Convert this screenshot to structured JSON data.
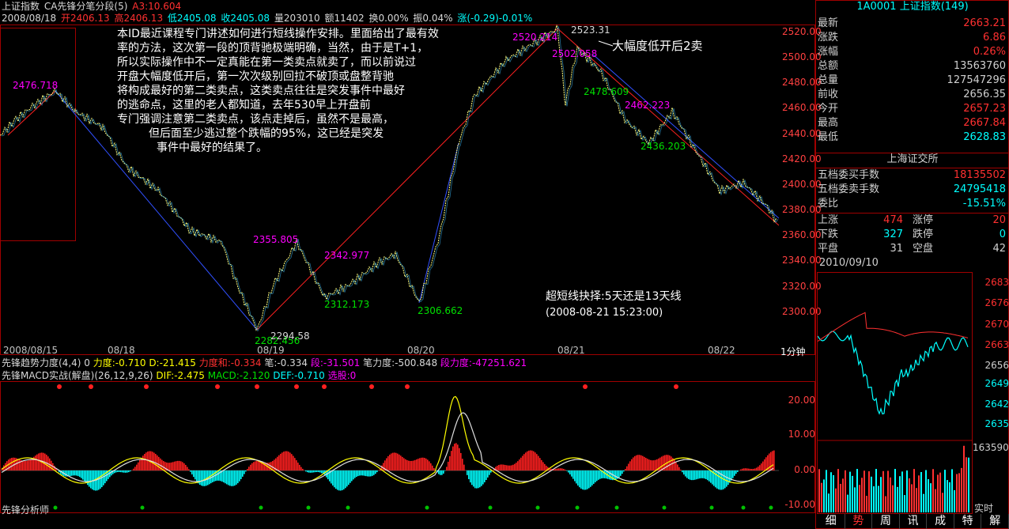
{
  "header": {
    "index_name": "上证指数",
    "indicator": "CA先锋分笔分段(5)",
    "a3": "A3:10.604",
    "date": "2008/08/18",
    "open": "开2406.13",
    "high": "高2406.13",
    "low": "低2405.08",
    "close": "收2405.08",
    "volume": "量203010",
    "amount": "额11402",
    "turnover": "换0.00%",
    "amplitude": "振0.04%",
    "change": "涨(-0.29)-0.01%"
  },
  "main_chart": {
    "y_ticks": [
      "2520.00",
      "2500.00",
      "2480.00",
      "2460.00",
      "2440.00",
      "2420.00",
      "2400.00",
      "2380.00",
      "2360.00",
      "2340.00",
      "2320.00",
      "2300.00"
    ],
    "x_labels": [
      "2008/08/15",
      "08/18",
      "08/19",
      "08/20",
      "08/21",
      "08/22"
    ],
    "period_button": "1分钟",
    "point_labels": [
      "2476.718",
      "2355.805",
      "2342.977",
      "2312.173",
      "2306.662",
      "2282.456",
      "2294.58",
      "2523.31",
      "2520.214",
      "2502.058",
      "2478.609",
      "2462.223",
      "2436.203"
    ],
    "annotation_right": "大幅度低开后2卖",
    "annotation_short": "超短线抉择:5天还是13天线",
    "annotation_time": "(2008-08-21  15:23:00)",
    "note_lines": [
      "本ID最近课程专门讲述如何进行短线操作安排。里面给出了最有效",
      "率的方法，这次第一段的顶背驰极端明确，当然，由于是T+1，",
      "所以实际操作中不一定真能在第一类卖点就卖了，而以前说过",
      "开盘大幅度低开后，第一次次级别回拉不破顶或盘整背驰",
      "将构成最好的第二类卖点，这类卖点往往是突发事件中最好",
      "的逃命点，这里的老人都知道，去年530早上开盘前",
      "专门强调注意第二类卖点，该点走掉后，虽然不是最高，",
      "但后面至少逃过整个跌幅的95%，这已经是突发",
      "事件中最好的结果了。"
    ]
  },
  "indicator1": {
    "name": "先锋趋势力度(4,4)",
    "zero": "0",
    "force": "力度:-0.710",
    "d": "D:-21.415",
    "force_sum": "力度和:-0.334",
    "stroke": "笔:-0.334",
    "segment": "段:-31.501",
    "stroke_force": "笔力度:-500.848",
    "segment_force": "段力度:-47251.621"
  },
  "indicator2": {
    "name": "先锋MACD实战(解盘)(26,12,9,26)",
    "dif": "DIF:-2.475",
    "macd": "MACD:-2.120",
    "def": "DEF:-0.710",
    "pick": "选股:0",
    "y_ticks": [
      "20.00",
      "10.00",
      "0.00",
      "-10.00"
    ],
    "footer": "先锋分析师"
  },
  "right_panel": {
    "title": "1A0001 上证指数(149)",
    "quotes": [
      {
        "k": "最新",
        "v": "2663.21",
        "c": "#ff3030"
      },
      {
        "k": "涨跌",
        "v": "6.86",
        "c": "#ff3030"
      },
      {
        "k": "涨幅",
        "v": "0.26%",
        "c": "#ff3030"
      },
      {
        "k": "总额",
        "v": "13563760",
        "c": "#d0d0d0"
      },
      {
        "k": "总量",
        "v": "127547296",
        "c": "#d0d0d0"
      },
      {
        "k": "前收",
        "v": "2656.35",
        "c": "#d0d0d0"
      },
      {
        "k": "今开",
        "v": "2657.23",
        "c": "#ff3030"
      },
      {
        "k": "最高",
        "v": "2667.84",
        "c": "#ff3030"
      },
      {
        "k": "最低",
        "v": "2628.83",
        "c": "#00ffff"
      }
    ],
    "exchange": "上海证交所",
    "orders": [
      {
        "k": "五档委买手数",
        "v": "18135502",
        "c": "#ff3030"
      },
      {
        "k": "五档委卖手数",
        "v": "24795418",
        "c": "#00ffff"
      },
      {
        "k": "委比",
        "v": "-15.51%",
        "c": "#00ffff"
      }
    ],
    "breadth": [
      {
        "k1": "上涨",
        "v1": "474",
        "c1": "#ff3030",
        "k2": "涨停",
        "v2": "20",
        "c2": "#ff3030"
      },
      {
        "k1": "下跌",
        "v1": "327",
        "c1": "#00ffff",
        "k2": "跌停",
        "v2": "0",
        "c2": "#00ffff"
      },
      {
        "k1": "平盘",
        "v1": "31",
        "c1": "#d0d0d0",
        "k2": "空盘",
        "v2": "42",
        "c2": "#d0d0d0"
      }
    ],
    "mini_date": "2010/09/10",
    "mini_y_ticks": [
      "2683",
      "2676",
      "2670",
      "2663",
      "2656",
      "2649",
      "2642",
      "2635"
    ],
    "mini_vol": "163590",
    "realtime": "实时",
    "tabs": [
      "细",
      "势",
      "周",
      "讯",
      "成",
      "特",
      "解"
    ],
    "active_tab": 1
  },
  "colors": {
    "up": "#ff3030",
    "down": "#00ffff",
    "frame": "#a00000",
    "bg": "#000000"
  }
}
